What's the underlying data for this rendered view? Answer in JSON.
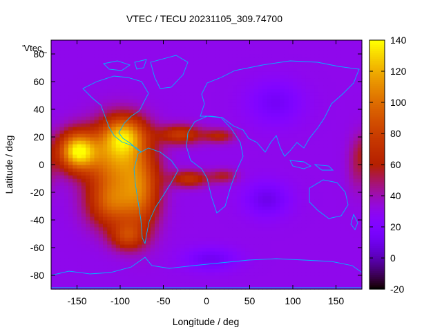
{
  "chart_data": {
    "type": "heatmap",
    "title": "VTEC / TECU 20231105_309.74700",
    "xlabel": "Longitude / deg",
    "ylabel": "Latitude / deg",
    "xlim": [
      -180,
      180
    ],
    "ylim": [
      -90,
      90
    ],
    "xticks": [
      -150,
      -100,
      -50,
      0,
      50,
      100,
      150
    ],
    "yticks": [
      -80,
      -60,
      -40,
      -20,
      0,
      20,
      40,
      60,
      80
    ],
    "xtick_labels": [
      "-150",
      "-100",
      "-50",
      "0",
      "50",
      "100",
      "150"
    ],
    "ytick_labels": [
      "-80",
      "-60",
      "-40",
      "-20",
      "0",
      "20",
      "40",
      "60",
      "80"
    ],
    "colorbar": {
      "min": -20,
      "max": 140,
      "ticks": [
        -20,
        0,
        20,
        40,
        60,
        80,
        100,
        120,
        140
      ],
      "tick_labels": [
        "-20",
        "0",
        "20",
        "40",
        "60",
        "80",
        "100",
        "120",
        "140"
      ],
      "colormap": "gnuplot-pm3d-default"
    },
    "key_label": "'Vtec_",
    "overlay": "continent coastlines (cyan)",
    "coastline_color": "#00b4ff",
    "background_level": 30,
    "features": [
      {
        "name": "peak-east-pacific",
        "lon": -145,
        "lat": 12,
        "value": 130
      },
      {
        "name": "east-pacific-band",
        "lon": -125,
        "lat": 5,
        "value": 100
      },
      {
        "name": "central-america",
        "lon": -95,
        "lat": 20,
        "value": 92
      },
      {
        "name": "south-east-pacific",
        "lon": -110,
        "lat": -28,
        "value": 85
      },
      {
        "name": "south-america-west",
        "lon": -75,
        "lat": -20,
        "value": 82
      },
      {
        "name": "south-pacific-tail",
        "lon": -95,
        "lat": -50,
        "value": 70
      },
      {
        "name": "atlantic-north-arc",
        "lon": -10,
        "lat": 22,
        "value": 78
      },
      {
        "name": "atlantic-south-arc",
        "lon": -5,
        "lat": -10,
        "value": 72
      },
      {
        "name": "trough-asia",
        "lon": 85,
        "lat": 45,
        "value": 15
      },
      {
        "name": "trough-south-indian",
        "lon": 70,
        "lat": -25,
        "value": 12
      },
      {
        "name": "trough-southern-ocean",
        "lon": 5,
        "lat": -68,
        "value": 14
      }
    ]
  }
}
